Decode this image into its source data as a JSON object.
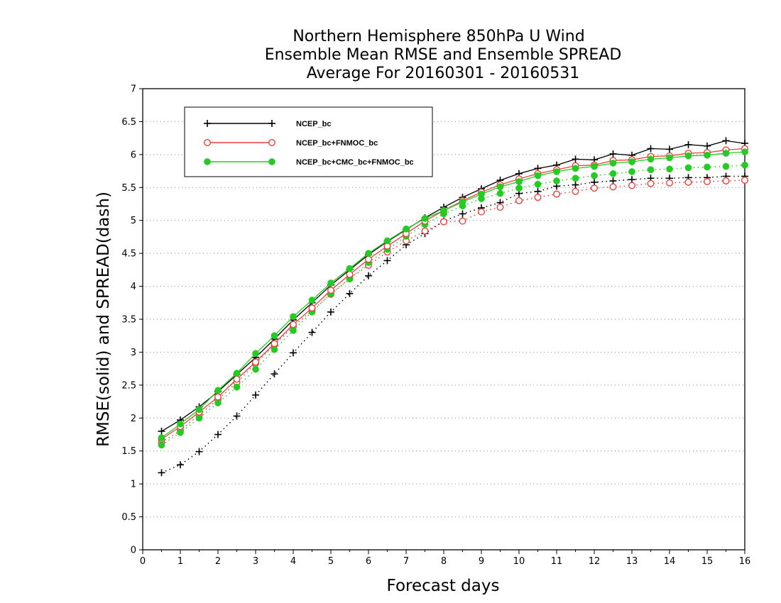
{
  "chart_data": {
    "type": "line",
    "title": [
      "Northern Hemisphere 850hPa U Wind",
      "Ensemble Mean RMSE and Ensemble SPREAD",
      "Average For 20160301 - 20160531"
    ],
    "xlabel": "Forecast days",
    "ylabel": "RMSE(solid) and SPREAD(dash)",
    "xlim": [
      0,
      16
    ],
    "ylim": [
      0,
      7
    ],
    "xticks": [
      "0",
      "1",
      "2",
      "3",
      "4",
      "5",
      "6",
      "7",
      "8",
      "9",
      "10",
      "11",
      "12",
      "13",
      "14",
      "15",
      "16"
    ],
    "yticks": [
      "0",
      "0.5",
      "1",
      "1.5",
      "2",
      "2.5",
      "3",
      "3.5",
      "4",
      "4.5",
      "5",
      "5.5",
      "6",
      "6.5",
      "7"
    ],
    "ygrid": true,
    "legend_position": "top-left",
    "x": [
      0.5,
      1,
      1.5,
      2,
      2.5,
      3,
      3.5,
      4,
      4.5,
      5,
      5.5,
      6,
      6.5,
      7,
      7.5,
      8,
      8.5,
      9,
      9.5,
      10,
      10.5,
      11,
      11.5,
      12,
      12.5,
      13,
      13.5,
      14,
      14.5,
      15,
      15.5,
      16
    ],
    "series": [
      {
        "name": "NCEP_bc",
        "kind": "rmse",
        "style": "solid",
        "marker": "plus",
        "color": "#000000",
        "values": [
          1.8,
          1.97,
          2.17,
          2.4,
          2.66,
          2.92,
          3.2,
          3.49,
          3.75,
          4.02,
          4.25,
          4.48,
          4.68,
          4.86,
          5.04,
          5.2,
          5.35,
          5.48,
          5.61,
          5.71,
          5.79,
          5.84,
          5.93,
          5.92,
          6.01,
          5.99,
          6.09,
          6.08,
          6.15,
          6.13,
          6.21,
          6.17
        ]
      },
      {
        "name": "NCEP_bc+FNMOC_bc",
        "kind": "rmse",
        "style": "solid",
        "marker": "open-circle",
        "color": "#e8413c",
        "values": [
          1.68,
          1.87,
          2.09,
          2.32,
          2.59,
          2.85,
          3.13,
          3.42,
          3.67,
          3.94,
          4.18,
          4.41,
          4.61,
          4.8,
          4.99,
          5.15,
          5.3,
          5.43,
          5.54,
          5.63,
          5.71,
          5.77,
          5.83,
          5.84,
          5.91,
          5.92,
          5.97,
          5.98,
          6.02,
          6.03,
          6.07,
          6.09
        ]
      },
      {
        "name": "NCEP_bc+CMC_bc+FNMOC_bc",
        "kind": "rmse",
        "style": "solid",
        "marker": "filled-circle",
        "color": "#22cc22",
        "values": [
          1.7,
          1.91,
          2.13,
          2.42,
          2.68,
          2.98,
          3.25,
          3.54,
          3.79,
          4.05,
          4.27,
          4.5,
          4.69,
          4.87,
          5.03,
          5.15,
          5.28,
          5.4,
          5.51,
          5.59,
          5.68,
          5.74,
          5.79,
          5.82,
          5.87,
          5.89,
          5.93,
          5.95,
          5.98,
          5.99,
          6.02,
          6.04
        ]
      },
      {
        "name": "NCEP_bc",
        "kind": "spread",
        "style": "dash",
        "marker": "plus",
        "color": "#000000",
        "values": [
          1.17,
          1.29,
          1.49,
          1.75,
          2.03,
          2.35,
          2.67,
          2.99,
          3.3,
          3.61,
          3.89,
          4.16,
          4.39,
          4.63,
          4.8,
          4.99,
          5.1,
          5.19,
          5.27,
          5.41,
          5.44,
          5.52,
          5.54,
          5.58,
          5.6,
          5.62,
          5.64,
          5.64,
          5.65,
          5.65,
          5.67,
          5.67
        ]
      },
      {
        "name": "NCEP_bc+FNMOC_bc",
        "kind": "spread",
        "style": "dash",
        "marker": "open-circle",
        "color": "#e8413c",
        "values": [
          1.63,
          1.81,
          2.05,
          2.28,
          2.54,
          2.83,
          3.11,
          3.39,
          3.63,
          3.88,
          4.12,
          4.32,
          4.52,
          4.69,
          4.84,
          4.98,
          4.99,
          5.13,
          5.2,
          5.3,
          5.35,
          5.4,
          5.44,
          5.49,
          5.51,
          5.53,
          5.56,
          5.57,
          5.58,
          5.59,
          5.6,
          5.61
        ]
      },
      {
        "name": "NCEP_bc+CMC_bc+FNMOC_bc",
        "kind": "spread",
        "style": "dash",
        "marker": "filled-circle",
        "color": "#22cc22",
        "values": [
          1.59,
          1.78,
          2.0,
          2.23,
          2.47,
          2.74,
          3.04,
          3.33,
          3.61,
          3.89,
          4.11,
          4.36,
          4.56,
          4.76,
          4.94,
          5.1,
          5.22,
          5.33,
          5.41,
          5.49,
          5.55,
          5.6,
          5.64,
          5.68,
          5.71,
          5.74,
          5.77,
          5.78,
          5.8,
          5.81,
          5.82,
          5.84
        ]
      }
    ],
    "legend": [
      {
        "label": "NCEP_bc",
        "marker": "plus",
        "color": "#000000"
      },
      {
        "label": "NCEP_bc+FNMOC_bc",
        "marker": "open-circle",
        "color": "#e8413c"
      },
      {
        "label": "NCEP_bc+CMC_bc+FNMOC_bc",
        "marker": "filled-circle",
        "color": "#22cc22"
      }
    ]
  }
}
